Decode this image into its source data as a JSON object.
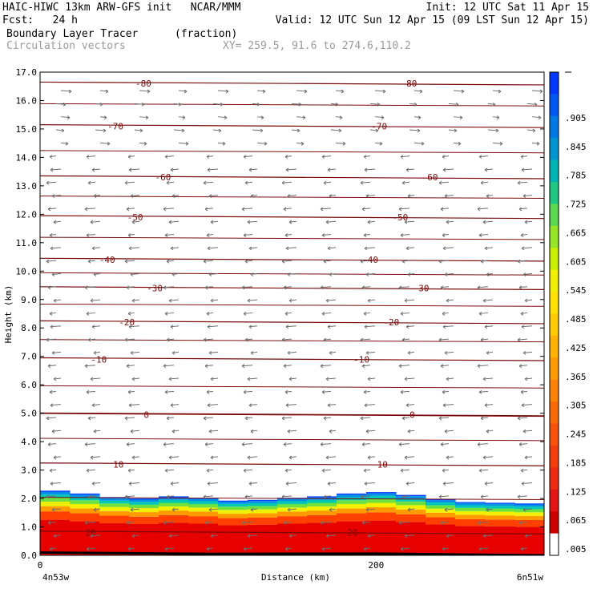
{
  "header": {
    "line1_left": "HAIC-HIWC 13km ARW-GFS init   NCAR/MMM",
    "line1_right": "Init: 12 UTC Sat 11 Apr 15",
    "line2_left": "Fcst:   24 h",
    "line2_right": "Valid: 12 UTC Sun 12 Apr 15 (09 LST Sun 12 Apr 15)",
    "field_name": "Boundary Layer Tracer",
    "field_units": "(fraction)",
    "vector_label": "Circulation vectors",
    "xy_label": "XY= 259.5, 91.6 to 274.6,110.2"
  },
  "chart_data": {
    "type": "heatmap",
    "title": "Boundary Layer Tracer",
    "ylabel": "Height (km)",
    "xlabel": "Distance (km)",
    "xlim": [
      0,
      300
    ],
    "ylim": [
      0,
      17
    ],
    "x_ticks": [
      "0",
      "200"
    ],
    "x_end_labels": [
      "4n53w",
      "6n51w"
    ],
    "y_ticks": [
      "0.0",
      "1.0",
      "2.0",
      "3.0",
      "4.0",
      "5.0",
      "6.0",
      "7.0",
      "8.0",
      "9.0",
      "10.0",
      "11.0",
      "12.0",
      "13.0",
      "14.0",
      "15.0",
      "16.0",
      "17.0"
    ],
    "colorbar_labels": [
      ".005",
      ".065",
      ".125",
      ".185",
      ".245",
      ".305",
      ".365",
      ".425",
      ".485",
      ".545",
      ".605",
      ".665",
      ".725",
      ".785",
      ".845",
      ".905"
    ],
    "colorbar_colors": [
      "#ffffff",
      "#d00000",
      "#e61414",
      "#f02a10",
      "#f53e0c",
      "#fa520a",
      "#fc6a08",
      "#fd8206",
      "#fe9a04",
      "#ffb202",
      "#ffca00",
      "#ffe000",
      "#f0f000",
      "#c8f000",
      "#96e628",
      "#5ad850",
      "#1ec882",
      "#00b4b4",
      "#0096d2",
      "#0078e6",
      "#0058f5",
      "#0038ff"
    ],
    "boundary_layer_top_km": [
      2.35,
      2.2,
      2.15,
      1.95,
      2.05,
      2.1,
      1.95,
      1.9,
      2.0,
      2.05,
      2.1,
      2.25,
      2.2,
      2.05,
      1.9,
      1.85,
      1.85,
      1.8
    ],
    "temperature_contours": {
      "units": "C",
      "levels": [
        -80,
        -70,
        -60,
        -50,
        -40,
        -30,
        -20,
        -10,
        0,
        10,
        20
      ],
      "labeled_heights_km": {
        "-80": 16.6,
        "-70": 15.1,
        "-60": 13.3,
        "-50": 11.9,
        "-40": 10.4,
        "-30": 9.4,
        "-20": 8.2,
        "-10": 6.9,
        "0": 4.95,
        "10": 3.2,
        "20": 0.8
      }
    }
  }
}
